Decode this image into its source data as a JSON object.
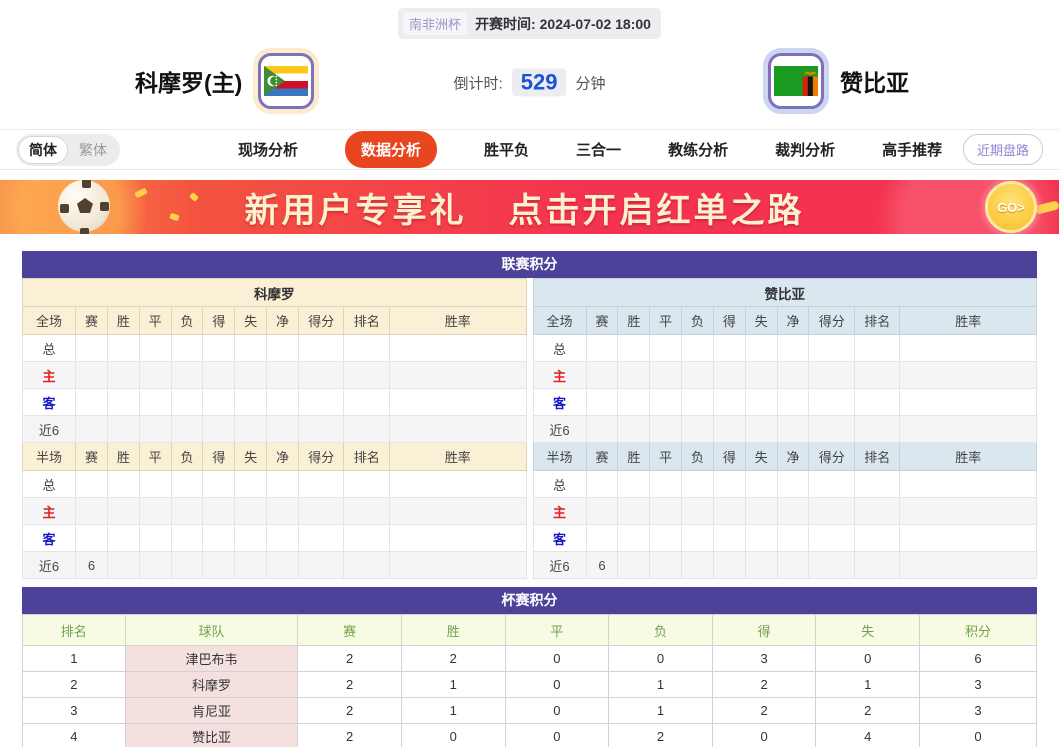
{
  "colors": {
    "section_header_bg": "#4d4299",
    "active_tab": "#e8461f",
    "home_panel": "#faf0d5",
    "away_panel": "#dbe7ef",
    "home_label": "#e02020",
    "away_label": "#1717cc",
    "countdown_value": "#1b53d6",
    "cup_header_text": "#71a24f",
    "cup_team_cell": "#f5e0e0"
  },
  "header": {
    "league_badge": "南非洲杯",
    "kickoff_label": "开赛时间:",
    "kickoff_time": "2024-07-02 18:00",
    "home_team": "科摩罗(主)",
    "away_team": "赞比亚",
    "countdown_label": "倒计时:",
    "countdown_value": "529",
    "countdown_unit": "分钟",
    "home_flag_icon": "comoros-flag",
    "away_flag_icon": "zambia-flag"
  },
  "nav": {
    "lang_simplified": "简体",
    "lang_traditional": "繁体",
    "tabs": [
      {
        "label": "现场分析",
        "active": false
      },
      {
        "label": "数据分析",
        "active": true
      },
      {
        "label": "胜平负",
        "active": false
      },
      {
        "label": "三合一",
        "active": false
      },
      {
        "label": "教练分析",
        "active": false
      },
      {
        "label": "裁判分析",
        "active": false
      },
      {
        "label": "高手推荐",
        "active": false
      }
    ],
    "recent_button": "近期盘路"
  },
  "banner": {
    "text_left": "新用户专享礼",
    "text_right": "点击开启红单之路",
    "go_label": "GO>"
  },
  "league_table": {
    "title": "联赛积分",
    "stat_columns": [
      "赛",
      "胜",
      "平",
      "负",
      "得",
      "失",
      "净",
      "得分",
      "排名",
      "胜率"
    ],
    "teams": [
      {
        "name": "科摩罗",
        "side": "home",
        "sections": [
          {
            "label": "全场",
            "rows": [
              {
                "label": "总",
                "values": []
              },
              {
                "label": "主",
                "values": []
              },
              {
                "label": "客",
                "values": []
              },
              {
                "label": "近6",
                "values": []
              }
            ]
          },
          {
            "label": "半场",
            "rows": [
              {
                "label": "总",
                "values": []
              },
              {
                "label": "主",
                "values": []
              },
              {
                "label": "客",
                "values": []
              },
              {
                "label": "近6",
                "values": [
                  "6"
                ]
              }
            ]
          }
        ]
      },
      {
        "name": "赞比亚",
        "side": "away",
        "sections": [
          {
            "label": "全场",
            "rows": [
              {
                "label": "总",
                "values": []
              },
              {
                "label": "主",
                "values": []
              },
              {
                "label": "客",
                "values": []
              },
              {
                "label": "近6",
                "values": []
              }
            ]
          },
          {
            "label": "半场",
            "rows": [
              {
                "label": "总",
                "values": []
              },
              {
                "label": "主",
                "values": []
              },
              {
                "label": "客",
                "values": []
              },
              {
                "label": "近6",
                "values": [
                  "6"
                ]
              }
            ]
          }
        ]
      }
    ]
  },
  "cup_table": {
    "title": "杯赛积分",
    "columns": [
      "排名",
      "球队",
      "赛",
      "胜",
      "平",
      "负",
      "得",
      "失",
      "积分"
    ],
    "rows": [
      [
        "1",
        "津巴布韦",
        "2",
        "2",
        "0",
        "0",
        "3",
        "0",
        "6"
      ],
      [
        "2",
        "科摩罗",
        "2",
        "1",
        "0",
        "1",
        "2",
        "1",
        "3"
      ],
      [
        "3",
        "肯尼亚",
        "2",
        "1",
        "0",
        "1",
        "2",
        "2",
        "3"
      ],
      [
        "4",
        "赞比亚",
        "2",
        "0",
        "0",
        "2",
        "0",
        "4",
        "0"
      ]
    ]
  }
}
